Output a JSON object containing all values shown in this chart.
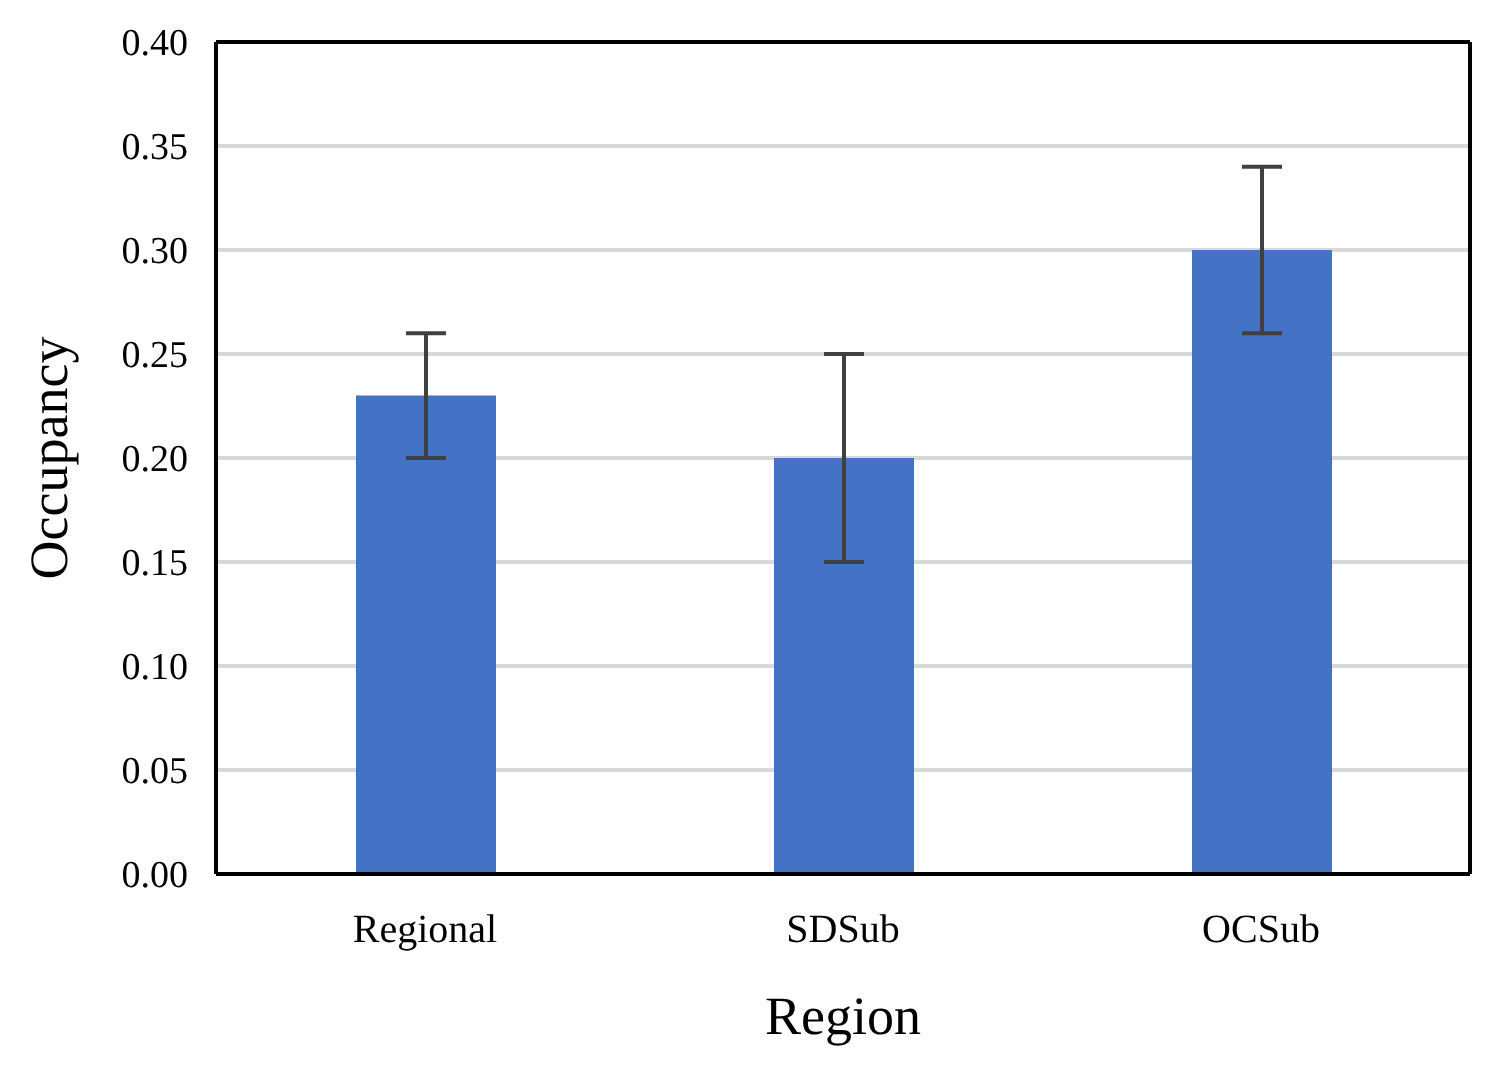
{
  "chart_data": {
    "type": "bar",
    "xlabel": "Region",
    "ylabel": "Occupancy",
    "categories": [
      "Regional",
      "SDSub",
      "OCSub"
    ],
    "values": [
      0.23,
      0.2,
      0.3
    ],
    "errors": [
      0.03,
      0.05,
      0.04
    ],
    "color": "#4472c4",
    "ylim": [
      0,
      0.4
    ],
    "yticks": [
      {
        "value": 0,
        "label": "0.00"
      },
      {
        "value": 0.05,
        "label": "0.05"
      },
      {
        "value": 0.1,
        "label": "0.10"
      },
      {
        "value": 0.15,
        "label": "0.15"
      },
      {
        "value": 0.2,
        "label": "0.20"
      },
      {
        "value": 0.25,
        "label": "0.25"
      },
      {
        "value": 0.3,
        "label": "0.30"
      },
      {
        "value": 0.35,
        "label": "0.35"
      },
      {
        "value": 0.4,
        "label": "0.40"
      }
    ],
    "grid": "y",
    "legend": false
  }
}
